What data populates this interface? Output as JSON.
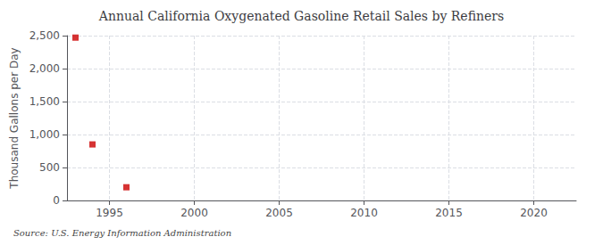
{
  "chart_data": {
    "type": "scatter",
    "title": "Annual California Oxygenated Gasoline Retail Sales by Refiners",
    "ylabel": "Thousand Gallons per Day",
    "annotation": "Source: U.S. Energy Information Administration",
    "x": [
      1993,
      1994,
      1996
    ],
    "values": [
      2470,
      850,
      200
    ],
    "color": "#cc0000",
    "marker": "square",
    "xlim": [
      1992.5,
      2022.5
    ],
    "xticks": [
      1995,
      2000,
      2005,
      2010,
      2015,
      2020
    ],
    "ylim": [
      0,
      2500
    ],
    "yticks": [
      0,
      500,
      {
        "value": 1000,
        "label": "1,000"
      },
      {
        "value": 1500,
        "label": "1,500"
      },
      {
        "value": 2000,
        "label": "2,000"
      },
      {
        "value": 2500,
        "label": "2,500"
      }
    ],
    "grid": true
  }
}
